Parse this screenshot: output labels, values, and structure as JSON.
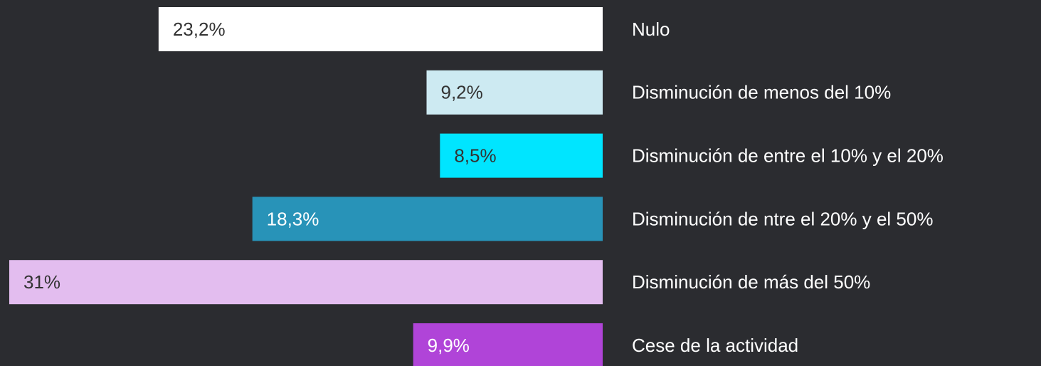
{
  "chart_data": {
    "type": "bar",
    "orientation": "horizontal",
    "categories": [
      "Nulo",
      "Disminución de menos del 10%",
      "Disminución de entre el 10% y el 20%",
      "Disminución de  ntre el 20% y el 50%",
      "Disminución de más del 50%",
      "Cese de la actividad"
    ],
    "values": [
      23.2,
      9.2,
      8.5,
      18.3,
      31,
      9.9
    ],
    "value_labels": [
      "23,2%",
      "9,2%",
      "8,5%",
      "18,3%",
      "31%",
      "9,9%"
    ],
    "colors": [
      "#ffffff",
      "#cdeaf2",
      "#00e5ff",
      "#2893b8",
      "#e3bdef",
      "#b044d8"
    ]
  }
}
